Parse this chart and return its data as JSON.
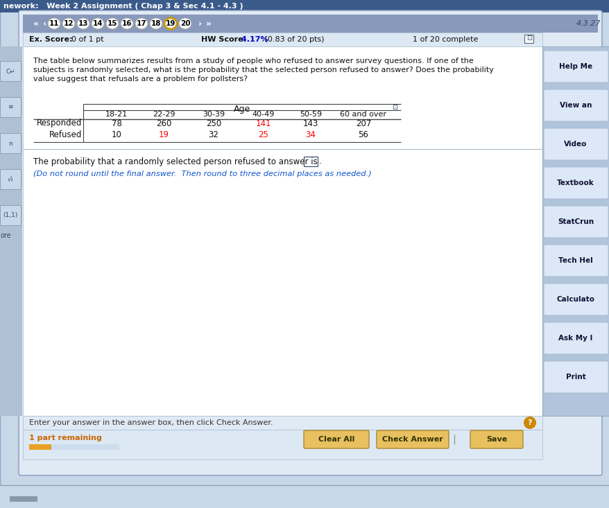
{
  "title_bar_text": "nework:   Week 2 Assignment ( Chap 3 & Sec 4.1 - 4.3 )",
  "title_bar_bg": "#3a5a8a",
  "nav_buttons": [
    "11",
    "12",
    "13",
    "14",
    "15",
    "16",
    "17",
    "18",
    "19",
    "20"
  ],
  "active_button": "19",
  "version_text": "4.3.27",
  "ex_score_bold": "Ex. Score:",
  "ex_score_rest": " 0 of 1 pt",
  "hw_score_bold": "HW Score:",
  "hw_score_blue": " 4.17%",
  "hw_score_rest": " (0.83 of 20 pts)",
  "complete_text": "1 of 20 complete",
  "main_bg": "#c8d8e8",
  "content_bg": "#ffffff",
  "question_text_line1": "The table below summarizes results from a study of people who refused to answer survey questions. If one of the",
  "question_text_line2": "subjects is randomly selected, what is the probability that the selected person refused to answer? Does the probability",
  "question_text_line3": "value suggest that refusals are a problem for pollsters?",
  "table_header": "Age",
  "age_groups": [
    "18-21",
    "22-29",
    "30-39",
    "40-49",
    "50-59",
    "60 and over"
  ],
  "row_labels": [
    "Responded",
    "Refused"
  ],
  "responded_values": [
    "78",
    "260",
    "250",
    "141",
    "143",
    "207"
  ],
  "refused_values": [
    "10",
    "19",
    "32",
    "25",
    "34",
    "56"
  ],
  "red_indices_responded": [
    3
  ],
  "red_indices_refused": [
    1,
    3,
    4
  ],
  "probability_text": "The probability that a randomly selected person refused to answer is",
  "note_text": "(Do not round until the final answer.  Then round to three decimal places as needed.)",
  "bottom_bar_text": "Enter your answer in the answer box, then click Check Answer.",
  "remaining_text": "1 part remaining",
  "btn_clear": "Clear All",
  "btn_check": "Check Answer",
  "btn_save": "Save",
  "sidebar_labels": [
    "Help Me",
    "View an",
    "Video",
    "Textbook",
    "StatCrun",
    "Tech Hel",
    "Calculato",
    "Ask My I",
    "Print"
  ],
  "sidebar_bg": "#b0c4dc",
  "progress_color": "#e8a020",
  "nav_active_border": "#e8a020",
  "nav_bg": "#8899cc",
  "score_bar_bg": "#dce8f4",
  "footer_bg": "#dce8f4",
  "button_bg": "#e8c060",
  "score_blue": "#0000cc",
  "text_dark": "#111111",
  "left_panel_bg": "#b0c0d4",
  "content_border": "#aabbcc"
}
